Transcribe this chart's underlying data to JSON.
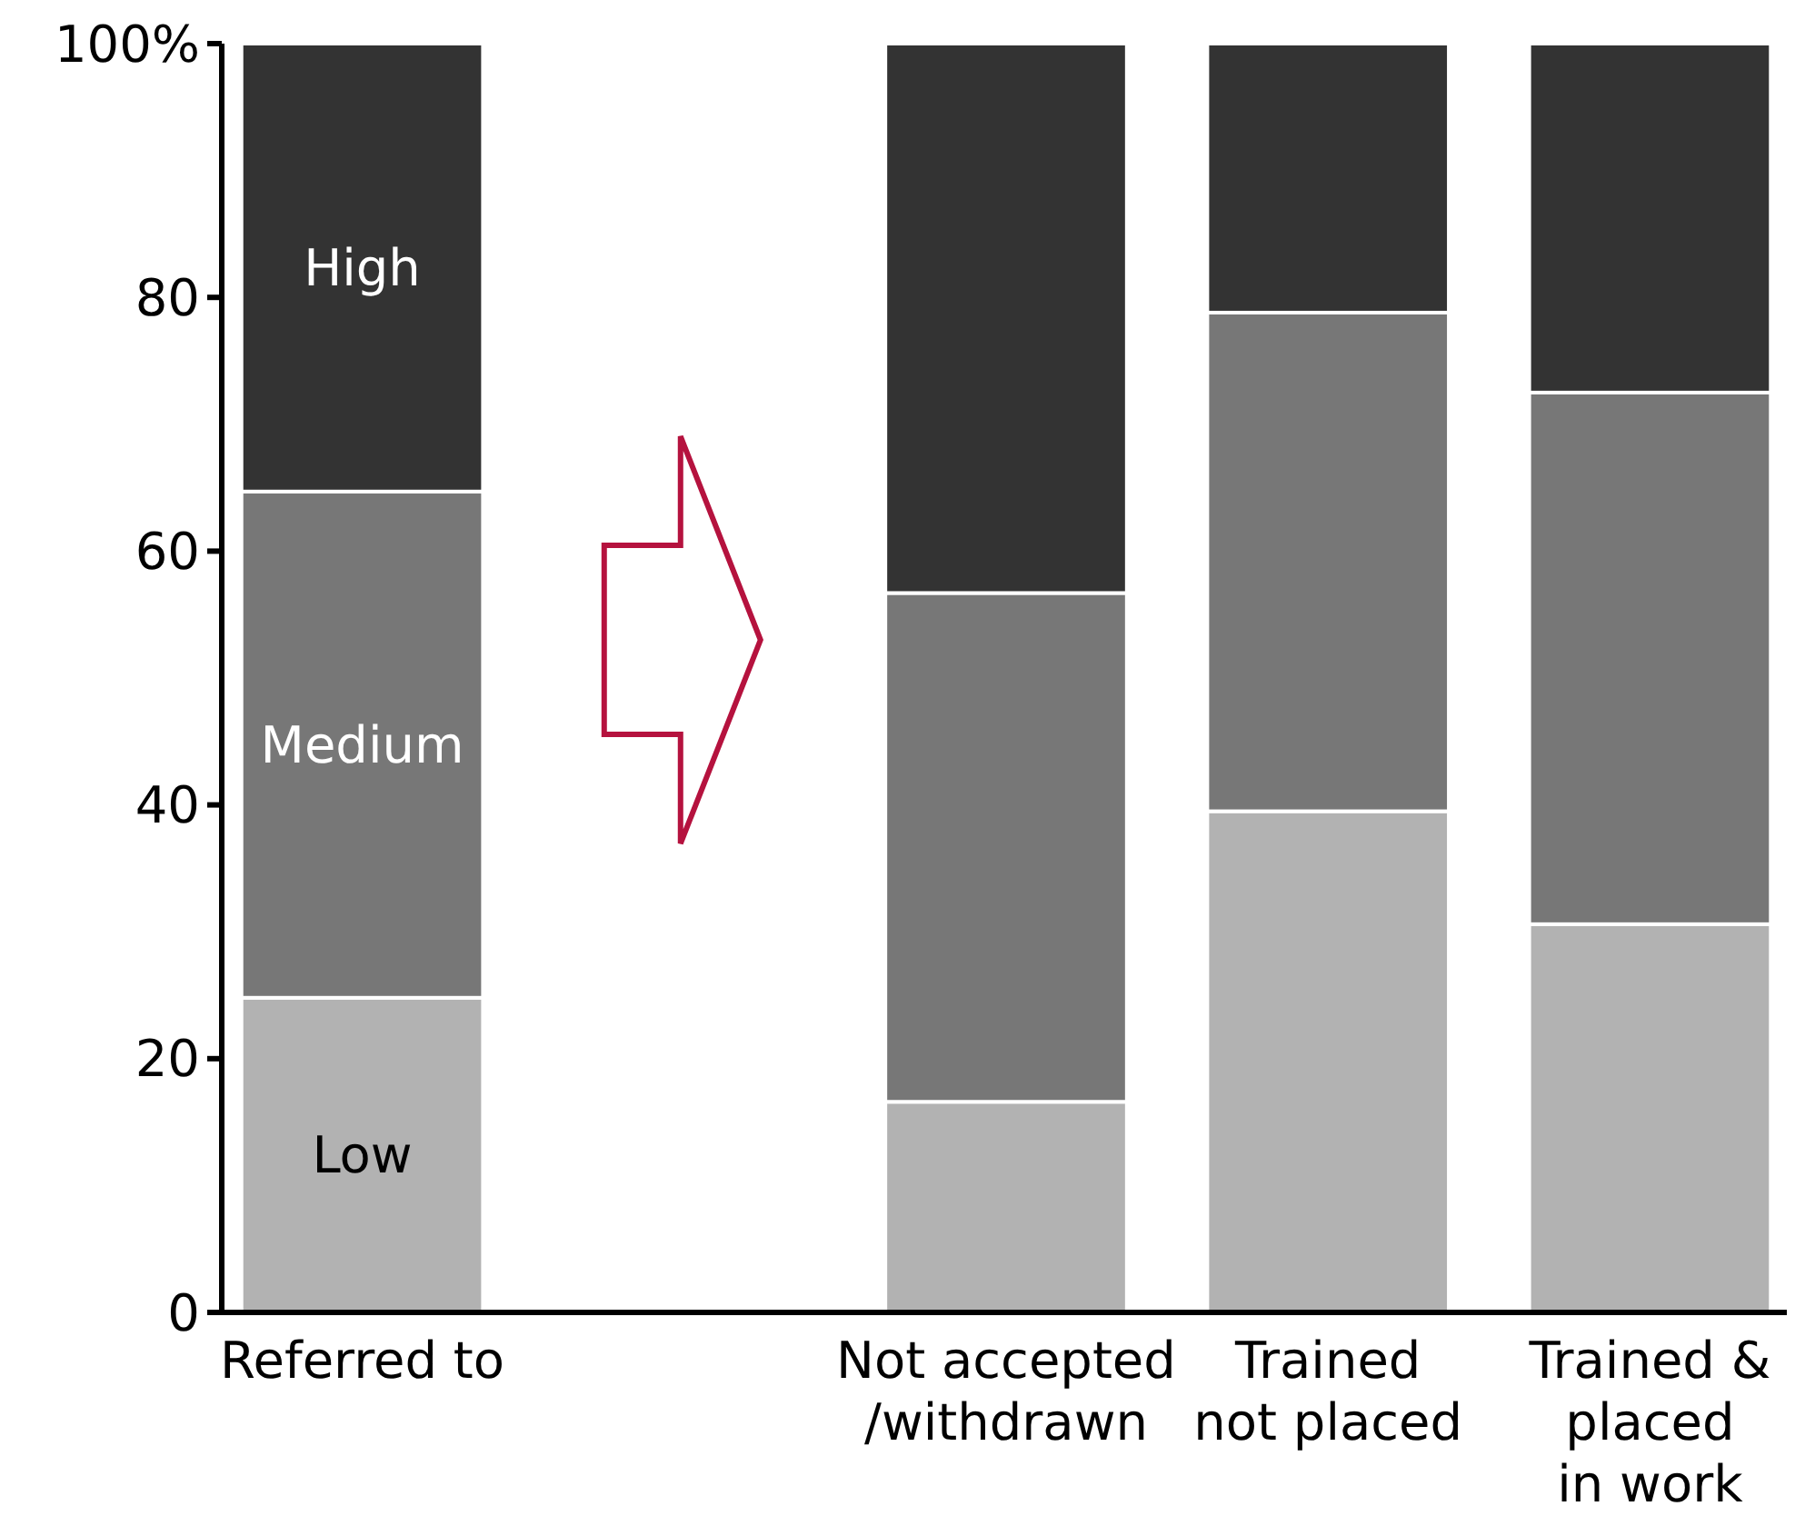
{
  "chart_data": {
    "type": "bar",
    "stacked": true,
    "categories": [
      "Referred to",
      null,
      "Not accepted\n/withdrawn",
      "Trained\nnot placed",
      "Trained &\nplaced\nin work"
    ],
    "series": [
      {
        "name": "Low",
        "color": "#b2b2b2",
        "values": [
          24.8,
          null,
          16.6,
          39.5,
          30.6
        ]
      },
      {
        "name": "Medium",
        "color": "#777777",
        "values": [
          39.9,
          null,
          40.1,
          39.3,
          41.9
        ]
      },
      {
        "name": "High",
        "color": "#333333",
        "values": [
          35.3,
          null,
          43.3,
          21.2,
          27.5
        ]
      }
    ],
    "ylim": [
      0,
      100
    ],
    "yticks": [
      0,
      20,
      40,
      60,
      80,
      {
        "value": 100,
        "label": "100%"
      }
    ],
    "grid": false
  }
}
